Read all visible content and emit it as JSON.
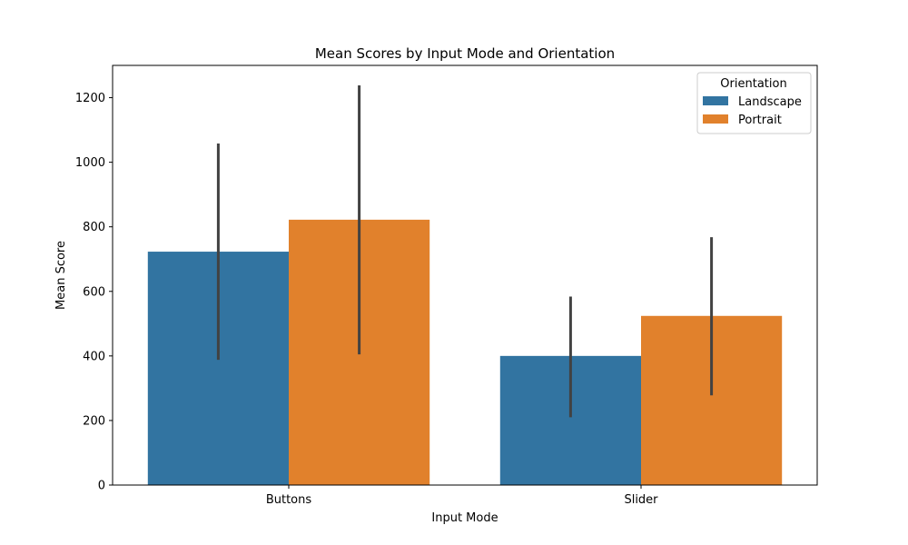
{
  "chart_data": {
    "type": "bar",
    "title": "Mean Scores by Input Mode and Orientation",
    "xlabel": "Input Mode",
    "ylabel": "Mean Score",
    "categories": [
      "Buttons",
      "Slider"
    ],
    "ylim": [
      0,
      1300
    ],
    "yticks": [
      0,
      200,
      400,
      600,
      800,
      1000,
      1200
    ],
    "grid": false,
    "legend": {
      "title": "Orientation",
      "placement": "top-right"
    },
    "series": [
      {
        "name": "Landscape",
        "color": "#3274a1",
        "values": [
          723,
          400
        ],
        "ci_low": [
          388,
          210
        ],
        "ci_high": [
          1058,
          584
        ]
      },
      {
        "name": "Portrait",
        "color": "#e1812c",
        "values": [
          822,
          524
        ],
        "ci_low": [
          405,
          278
        ],
        "ci_high": [
          1238,
          768
        ]
      }
    ],
    "errorbar_color": "#424242"
  }
}
